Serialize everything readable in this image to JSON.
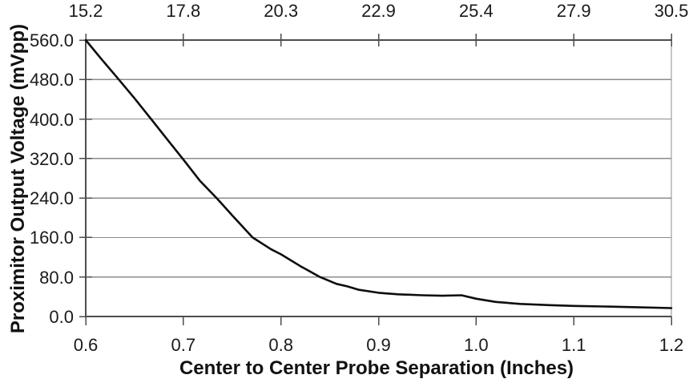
{
  "chart_data": {
    "type": "line",
    "title": "",
    "xlabel": "Center to Center Probe Separation (Inches)",
    "ylabel": "Proximitor Output Voltage (mVpp)",
    "xlim": [
      0.6,
      1.2
    ],
    "ylim": [
      0.0,
      560.0
    ],
    "grid": "horizontal-gridlines-at-y-ticks",
    "legend": "none",
    "bottom_tick_labels": [
      "0.6",
      "0.7",
      "0.8",
      "0.9",
      "1.0",
      "1.1",
      "1.2"
    ],
    "bottom_tick_values": [
      0.6,
      0.7,
      0.8,
      0.9,
      1.0,
      1.1,
      1.2
    ],
    "top_tick_labels": [
      "15.2",
      "17.8",
      "20.3",
      "22.9",
      "25.4",
      "27.9",
      "30.5"
    ],
    "top_tick_values": [
      0.6,
      0.7,
      0.8,
      0.9,
      1.0,
      1.1,
      1.2
    ],
    "y_tick_labels": [
      "560.0",
      "480.0",
      "400.0",
      "320.0",
      "240.0",
      "160.0",
      "80.0",
      "0.0"
    ],
    "y_tick_values": [
      560,
      480,
      400,
      320,
      240,
      160,
      80,
      0
    ],
    "series": [
      {
        "name": "proximitor-output-voltage-curve",
        "points": [
          [
            0.6,
            560
          ],
          [
            0.615,
            524
          ],
          [
            0.63,
            489
          ],
          [
            0.65,
            442
          ],
          [
            0.667,
            400
          ],
          [
            0.685,
            355
          ],
          [
            0.7,
            318
          ],
          [
            0.717,
            275
          ],
          [
            0.734,
            240
          ],
          [
            0.75,
            205
          ],
          [
            0.771,
            160
          ],
          [
            0.79,
            136
          ],
          [
            0.8,
            126
          ],
          [
            0.82,
            102
          ],
          [
            0.84,
            80
          ],
          [
            0.857,
            66
          ],
          [
            0.868,
            61
          ],
          [
            0.88,
            54
          ],
          [
            0.9,
            48
          ],
          [
            0.92,
            45
          ],
          [
            0.945,
            43
          ],
          [
            0.965,
            42
          ],
          [
            0.985,
            43
          ],
          [
            1.0,
            36
          ],
          [
            1.02,
            29.5
          ],
          [
            1.045,
            25.5
          ],
          [
            1.075,
            23
          ],
          [
            1.1,
            21.5
          ],
          [
            1.13,
            20.3
          ],
          [
            1.16,
            19
          ],
          [
            1.2,
            17
          ]
        ]
      }
    ],
    "colors": {
      "line": "#0d0d0d",
      "gridline": "#8c8c8c",
      "axis": "#4d4d4d",
      "plot_border_right": "#8c8c8c",
      "text": "#1a1a1a",
      "background": "#ffffff"
    }
  }
}
